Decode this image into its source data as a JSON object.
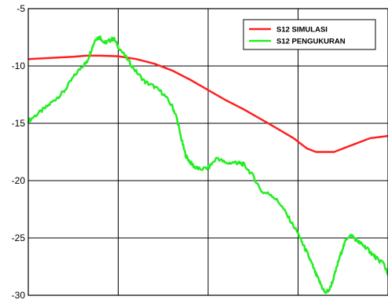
{
  "chart_data": {
    "type": "line",
    "title": "",
    "xlabel": "",
    "ylabel": "",
    "ylim": [
      -30,
      -5
    ],
    "xlim": [
      0,
      4
    ],
    "x_ticks": [
      1,
      2,
      3
    ],
    "x_tick_labels": [],
    "y_ticks": [
      -5,
      -10,
      -15,
      -20,
      -25,
      -30
    ],
    "y_tick_labels": [
      "-5",
      "-10",
      "-15",
      "-20",
      "-25",
      "-30"
    ],
    "grid": true,
    "legend_position": "top-right",
    "series": [
      {
        "name": "S12 SIMULASI",
        "color": "#ff2020",
        "x": [
          0,
          0.25,
          0.5,
          0.65,
          0.8,
          1.0,
          1.2,
          1.4,
          1.6,
          1.8,
          2.0,
          2.2,
          2.4,
          2.6,
          2.8,
          2.95,
          3.0,
          3.1,
          3.2,
          3.4,
          3.6,
          3.8,
          4.0
        ],
        "values": [
          -9.4,
          -9.3,
          -9.2,
          -9.1,
          -9.1,
          -9.15,
          -9.4,
          -9.8,
          -10.4,
          -11.2,
          -12.1,
          -13.0,
          -13.8,
          -14.7,
          -15.6,
          -16.3,
          -16.6,
          -17.2,
          -17.5,
          -17.5,
          -16.9,
          -16.3,
          -16.1
        ]
      },
      {
        "name": "S12 PENGUKURAN",
        "color": "#22ee22",
        "x": [
          0,
          0.1,
          0.2,
          0.3,
          0.4,
          0.5,
          0.6,
          0.65,
          0.7,
          0.75,
          0.8,
          0.85,
          0.9,
          0.95,
          1.0,
          1.1,
          1.2,
          1.3,
          1.4,
          1.5,
          1.6,
          1.65,
          1.7,
          1.75,
          1.8,
          1.85,
          1.9,
          2.0,
          2.1,
          2.2,
          2.3,
          2.35,
          2.4,
          2.5,
          2.6,
          2.7,
          2.8,
          2.9,
          3.0,
          3.05,
          3.1,
          3.15,
          3.2,
          3.25,
          3.3,
          3.35,
          3.4,
          3.45,
          3.5,
          3.55,
          3.6,
          3.65,
          3.7,
          3.75,
          3.8,
          3.85,
          3.9,
          3.95,
          4.0
        ],
        "values": [
          -14.8,
          -14.2,
          -13.6,
          -12.9,
          -12.2,
          -11.0,
          -10.0,
          -9.7,
          -8.6,
          -7.6,
          -7.5,
          -8.0,
          -7.8,
          -7.6,
          -8.3,
          -9.4,
          -10.5,
          -11.4,
          -11.8,
          -12.4,
          -13.5,
          -14.5,
          -16.3,
          -17.8,
          -18.4,
          -18.8,
          -19.0,
          -18.9,
          -18.0,
          -18.5,
          -18.4,
          -18.5,
          -18.6,
          -19.6,
          -21.0,
          -21.2,
          -22.0,
          -23.3,
          -24.6,
          -25.5,
          -26.3,
          -27.2,
          -28.2,
          -29.0,
          -29.8,
          -29.5,
          -28.4,
          -27.0,
          -25.8,
          -24.9,
          -24.8,
          -25.2,
          -25.5,
          -25.8,
          -26.2,
          -26.6,
          -27.0,
          -27.1,
          -28.3
        ]
      }
    ]
  }
}
